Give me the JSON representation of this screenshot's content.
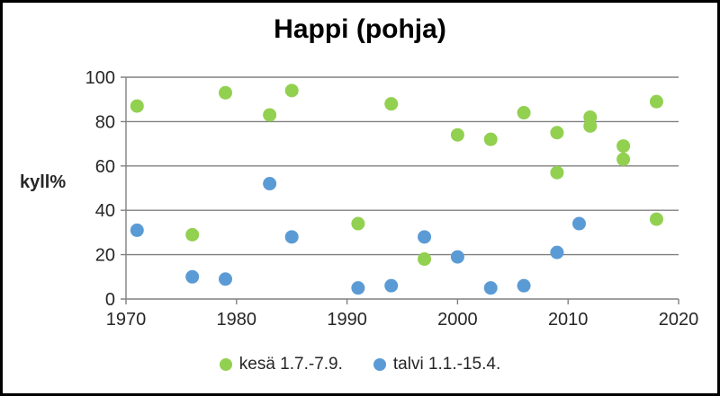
{
  "window": {
    "background": "#ffffff",
    "border_color": "#000000"
  },
  "chart_data": {
    "type": "scatter",
    "title": "Happi (pohja)",
    "ylabel": "kyll%",
    "xlabel": "",
    "xlim": [
      1970,
      2020
    ],
    "ylim": [
      0,
      100
    ],
    "x_ticks": [
      1970,
      1980,
      1990,
      2000,
      2010,
      2020
    ],
    "y_ticks": [
      0,
      20,
      40,
      60,
      80,
      100
    ],
    "grid": "horizontal",
    "legend_position": "bottom",
    "axis_color": "#808080",
    "tick_label_color": "#262626",
    "series": [
      {
        "name": "kesä 1.7.-7.9.",
        "color": "#92d050",
        "points": [
          {
            "x": 1971,
            "y": 87
          },
          {
            "x": 1976,
            "y": 29
          },
          {
            "x": 1979,
            "y": 93
          },
          {
            "x": 1983,
            "y": 83
          },
          {
            "x": 1985,
            "y": 94
          },
          {
            "x": 1991,
            "y": 34
          },
          {
            "x": 1994,
            "y": 88
          },
          {
            "x": 1997,
            "y": 18
          },
          {
            "x": 2000,
            "y": 74
          },
          {
            "x": 2003,
            "y": 72
          },
          {
            "x": 2006,
            "y": 84
          },
          {
            "x": 2009,
            "y": 75
          },
          {
            "x": 2009,
            "y": 57
          },
          {
            "x": 2012,
            "y": 82
          },
          {
            "x": 2012,
            "y": 78
          },
          {
            "x": 2015,
            "y": 69
          },
          {
            "x": 2015,
            "y": 63
          },
          {
            "x": 2018,
            "y": 89
          },
          {
            "x": 2018,
            "y": 36
          }
        ]
      },
      {
        "name": "talvi 1.1.-15.4.",
        "color": "#5b9bd5",
        "points": [
          {
            "x": 1971,
            "y": 31
          },
          {
            "x": 1976,
            "y": 10
          },
          {
            "x": 1979,
            "y": 9
          },
          {
            "x": 1983,
            "y": 52
          },
          {
            "x": 1985,
            "y": 28
          },
          {
            "x": 1991,
            "y": 5
          },
          {
            "x": 1994,
            "y": 6
          },
          {
            "x": 1997,
            "y": 28
          },
          {
            "x": 2000,
            "y": 19
          },
          {
            "x": 2003,
            "y": 5
          },
          {
            "x": 2006,
            "y": 6
          },
          {
            "x": 2009,
            "y": 21
          },
          {
            "x": 2011,
            "y": 34
          }
        ]
      }
    ]
  }
}
